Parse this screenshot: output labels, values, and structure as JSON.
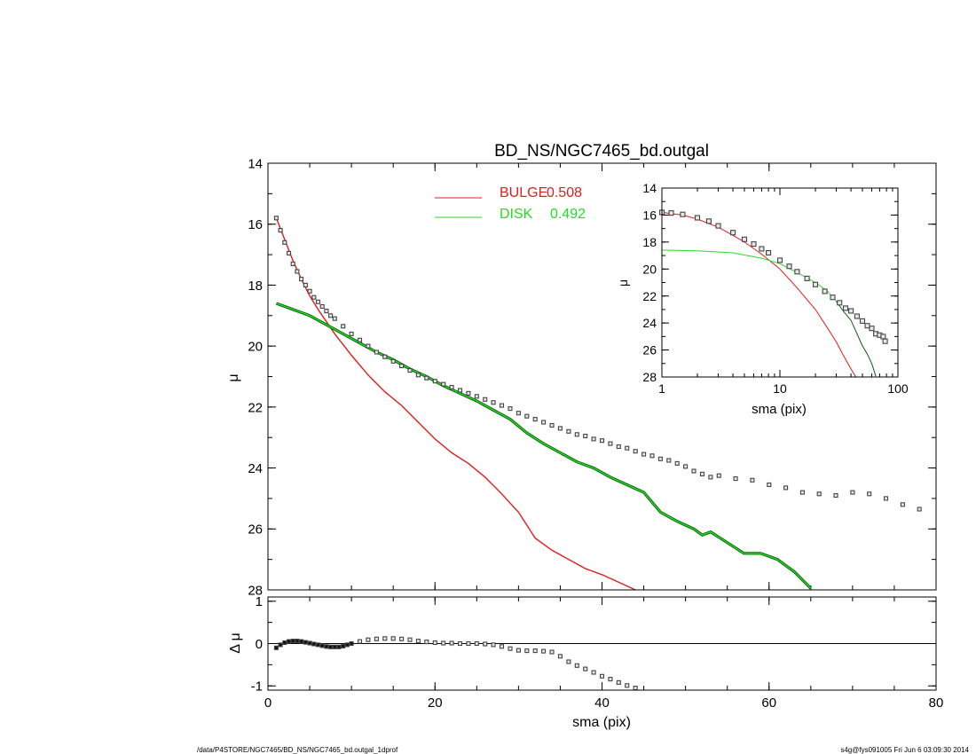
{
  "chart_data": [
    {
      "type": "scatter",
      "panel": "main",
      "title": "BD_NS/NGC7465_bd.outgal",
      "xlabel": "",
      "ylabel": "μ",
      "xlim": [
        0,
        80
      ],
      "ylim": [
        28,
        14
      ],
      "y_inverted": true,
      "xticks": [
        0,
        20,
        40,
        60,
        80
      ],
      "yticks": [
        14,
        16,
        18,
        20,
        22,
        24,
        26,
        28
      ],
      "legend_placement": "top-center",
      "series": [
        {
          "name": "BULGE",
          "label_value": "0.508",
          "color": "#e11c1c",
          "kind": "line",
          "x": [
            1,
            2,
            3,
            4,
            5,
            6,
            8,
            10,
            12,
            14,
            16,
            18,
            20,
            22,
            24,
            26,
            28,
            30,
            32,
            34,
            36,
            38,
            40,
            42,
            44
          ],
          "y": [
            15.8,
            16.5,
            17.2,
            17.8,
            18.35,
            18.8,
            19.6,
            20.3,
            20.95,
            21.5,
            21.95,
            22.5,
            23.05,
            23.5,
            23.85,
            24.3,
            24.85,
            25.45,
            26.3,
            26.7,
            27.0,
            27.3,
            27.5,
            27.75,
            28.0
          ]
        },
        {
          "name": "DISK",
          "label_value": "0.492",
          "color": "#22dd22",
          "kind": "line",
          "x": [
            1,
            3,
            5,
            7,
            9,
            11,
            13,
            15,
            17,
            19,
            21,
            23,
            25,
            27,
            29,
            31,
            33,
            35,
            37,
            39,
            41,
            43,
            45,
            47,
            49,
            51,
            52,
            53,
            55,
            57,
            59,
            61,
            63,
            65
          ],
          "y": [
            18.6,
            18.8,
            19.0,
            19.3,
            19.6,
            19.9,
            20.2,
            20.45,
            20.75,
            21.0,
            21.3,
            21.55,
            21.8,
            22.1,
            22.4,
            22.85,
            23.2,
            23.5,
            23.8,
            24.0,
            24.3,
            24.55,
            24.8,
            25.45,
            25.75,
            26.0,
            26.2,
            26.1,
            26.45,
            26.8,
            26.8,
            27.0,
            27.4,
            27.95
          ]
        },
        {
          "name": "",
          "color": "#444444",
          "kind": "markers",
          "x": [
            1,
            1.5,
            2,
            2.5,
            3,
            3.5,
            4,
            4.5,
            5,
            5.5,
            6,
            6.5,
            7,
            7.5,
            8,
            9,
            10,
            11,
            12,
            13,
            14,
            15,
            16,
            17,
            18,
            19,
            20,
            21,
            22,
            23,
            24,
            25,
            26,
            27,
            28,
            29,
            30,
            31,
            32,
            33,
            34,
            35,
            36,
            37,
            38,
            39,
            40,
            41,
            42,
            43,
            44,
            45,
            46,
            47,
            48,
            49,
            50,
            51,
            52,
            53,
            54,
            56,
            58,
            60,
            62,
            64,
            66,
            68,
            70,
            72,
            74,
            76,
            78
          ],
          "y": [
            15.8,
            16.2,
            16.6,
            16.95,
            17.3,
            17.55,
            17.8,
            18.0,
            18.2,
            18.4,
            18.55,
            18.7,
            18.85,
            19.0,
            19.1,
            19.35,
            19.6,
            19.8,
            20.0,
            20.2,
            20.35,
            20.5,
            20.65,
            20.8,
            20.95,
            21.05,
            21.15,
            21.25,
            21.35,
            21.45,
            21.55,
            21.65,
            21.75,
            21.85,
            21.95,
            22.05,
            22.2,
            22.3,
            22.4,
            22.5,
            22.6,
            22.7,
            22.8,
            22.9,
            22.95,
            23.05,
            23.1,
            23.2,
            23.3,
            23.35,
            23.45,
            23.55,
            23.6,
            23.7,
            23.75,
            23.85,
            23.95,
            24.1,
            24.2,
            24.3,
            24.25,
            24.35,
            24.4,
            24.55,
            24.65,
            24.8,
            24.85,
            24.9,
            24.8,
            24.85,
            25.0,
            25.2,
            25.35
          ]
        }
      ]
    },
    {
      "type": "scatter",
      "panel": "inset",
      "xlabel": "sma (pix)",
      "ylabel": "μ",
      "x_scale": "log",
      "xlim": [
        1,
        100
      ],
      "ylim": [
        28,
        14
      ],
      "y_inverted": true,
      "xticks": [
        "1",
        "10",
        "100"
      ],
      "yticks": [
        14,
        16,
        18,
        20,
        22,
        24,
        26,
        28
      ],
      "series": [
        {
          "name": "",
          "color": "#e11c1c",
          "kind": "line",
          "x": [
            1,
            1.5,
            2,
            3,
            4,
            5,
            7,
            10,
            14,
            20,
            25,
            30,
            35,
            40,
            44
          ],
          "y": [
            15.8,
            16.0,
            16.3,
            16.9,
            17.5,
            18.0,
            18.9,
            20.0,
            21.4,
            23.0,
            24.3,
            25.4,
            26.5,
            27.4,
            28.0
          ]
        },
        {
          "name": "",
          "color": "#22dd22",
          "kind": "line",
          "x": [
            1,
            2,
            4,
            7,
            10,
            15,
            20,
            25,
            30
          ],
          "y": [
            18.6,
            18.65,
            18.8,
            19.2,
            19.6,
            20.4,
            21.0,
            21.6,
            22.4
          ]
        },
        {
          "name": "",
          "color": "#0a5d0a",
          "kind": "line",
          "x": [
            30,
            35,
            40,
            45,
            50,
            55,
            60,
            65
          ],
          "y": [
            22.4,
            23.2,
            23.8,
            24.8,
            25.7,
            26.3,
            27.0,
            27.95
          ]
        },
        {
          "name": "",
          "color": "#444444",
          "kind": "markers",
          "x": [
            1,
            1.2,
            1.5,
            2,
            2.5,
            3,
            4,
            5,
            6,
            7,
            8,
            10,
            12,
            14,
            17,
            20,
            24,
            28,
            32,
            36,
            40,
            45,
            50,
            55,
            60,
            65,
            70,
            75,
            78
          ],
          "y": [
            15.8,
            15.85,
            15.95,
            16.2,
            16.45,
            16.8,
            17.3,
            17.8,
            18.15,
            18.5,
            18.8,
            19.35,
            19.8,
            20.2,
            20.7,
            21.15,
            21.65,
            22.1,
            22.5,
            22.9,
            23.1,
            23.5,
            23.85,
            24.2,
            24.4,
            24.8,
            24.9,
            25.0,
            25.35
          ]
        }
      ]
    },
    {
      "type": "scatter",
      "panel": "residuals",
      "xlabel": "sma (pix)",
      "ylabel": "Δ μ",
      "xlim": [
        0,
        80
      ],
      "ylim": [
        -1.1,
        1.1
      ],
      "xticks": [
        0,
        20,
        40,
        60,
        80
      ],
      "yticks": [
        -1,
        0,
        1
      ],
      "reference_line": 0,
      "series": [
        {
          "name": "",
          "color": "#444444",
          "kind": "markers",
          "x": [
            1,
            1.5,
            2,
            2.5,
            3,
            3.5,
            4,
            4.5,
            5,
            5.5,
            6,
            6.5,
            7,
            7.5,
            8,
            8.5,
            9,
            9.5,
            10,
            11,
            12,
            13,
            14,
            15,
            16,
            17,
            18,
            19,
            20,
            21,
            22,
            23,
            24,
            25,
            26,
            27,
            28,
            29,
            30,
            31,
            32,
            33,
            34,
            35,
            36,
            37,
            38,
            39,
            40,
            41,
            42,
            43,
            44
          ],
          "y": [
            -0.1,
            -0.03,
            0.02,
            0.05,
            0.06,
            0.06,
            0.05,
            0.03,
            0.01,
            -0.01,
            -0.03,
            -0.05,
            -0.07,
            -0.08,
            -0.08,
            -0.08,
            -0.06,
            -0.03,
            0.0,
            0.05,
            0.09,
            0.11,
            0.12,
            0.12,
            0.11,
            0.09,
            0.06,
            0.04,
            0.02,
            0.01,
            0.01,
            0.0,
            0.0,
            0.0,
            -0.01,
            -0.03,
            -0.07,
            -0.12,
            -0.16,
            -0.17,
            -0.17,
            -0.18,
            -0.2,
            -0.3,
            -0.43,
            -0.52,
            -0.6,
            -0.68,
            -0.77,
            -0.84,
            -0.92,
            -0.99,
            -1.05
          ]
        }
      ]
    }
  ],
  "footer": {
    "left": "/data/P4STORE/NGC7465/BD_NS/NGC7465_bd.outgal_1dprof",
    "right": "s4g@fys091005  Fri Jun  6 03:09:30 2014"
  }
}
